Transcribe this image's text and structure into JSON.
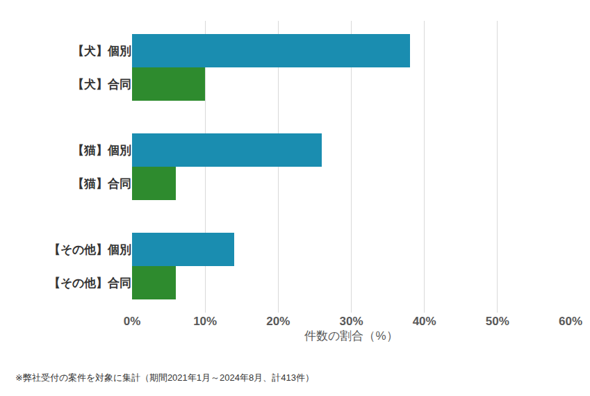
{
  "chart_data": {
    "type": "bar",
    "orientation": "horizontal",
    "categories": [
      "【犬】個別",
      "【犬】合同",
      "【猫】個別",
      "【猫】合同",
      "【その他】個別",
      "【その他】合同"
    ],
    "values": [
      38,
      10,
      26,
      6,
      14,
      6
    ],
    "colors": [
      "#1a8db0",
      "#2e8b2e",
      "#1a8db0",
      "#2e8b2e",
      "#1a8db0",
      "#2e8b2e"
    ],
    "x_label": "件数の割合（%）",
    "xlim": [
      0,
      60
    ],
    "xticks": [
      {
        "value": 0,
        "label": "0%"
      },
      {
        "value": 10,
        "label": "10%"
      },
      {
        "value": 20,
        "label": "20%"
      },
      {
        "value": 30,
        "label": "30%"
      },
      {
        "value": 40,
        "label": "40%"
      },
      {
        "value": 50,
        "label": "50%"
      },
      {
        "value": 60,
        "label": "60%"
      }
    ],
    "grid": true,
    "annotations": [
      "※弊社受付の案件を対象に集計（期間2021年1月～2024年8月、計413件）"
    ]
  }
}
